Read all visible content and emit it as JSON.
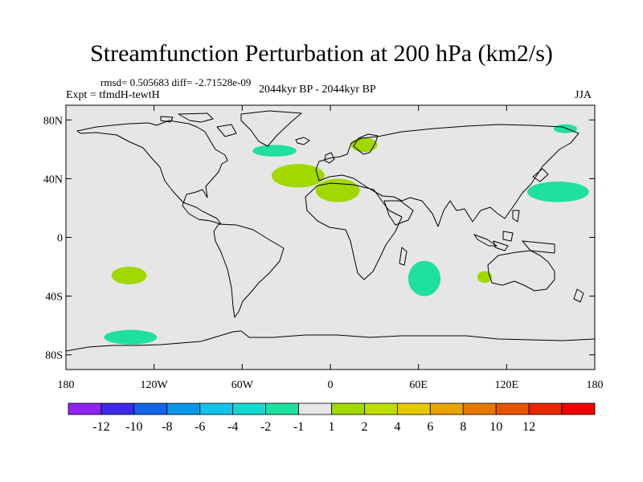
{
  "title": "Streamfunction Perturbation at 200 hPa (km2/s)",
  "stats": {
    "rmsd": "rmsd= 0.505683 diff= -2.71528e-09"
  },
  "experiment": "Expt = tfmdH-tewtH",
  "period": "2044kyr BP - 2044kyr BP",
  "season": "JJA",
  "map": {
    "lat_ticks": [
      {
        "label": "80N",
        "lat": 80
      },
      {
        "label": "40N",
        "lat": 40
      },
      {
        "label": "0",
        "lat": 0
      },
      {
        "label": "40S",
        "lat": -40
      },
      {
        "label": "80S",
        "lat": -80
      }
    ],
    "lon_ticks": [
      {
        "label": "180",
        "lon": -180
      },
      {
        "label": "120W",
        "lon": -120
      },
      {
        "label": "60W",
        "lon": -60
      },
      {
        "label": "0",
        "lon": 0
      },
      {
        "label": "60E",
        "lon": 60
      },
      {
        "label": "120E",
        "lon": 120
      },
      {
        "label": "180",
        "lon": 180
      }
    ],
    "anomalies": [
      {
        "name": "north-atlantic-green",
        "lon": -22,
        "lat": 42,
        "rlon": 18,
        "rlat": 8,
        "color": "#a0d800"
      },
      {
        "name": "north-africa-green",
        "lon": 5,
        "lat": 32,
        "rlon": 15,
        "rlat": 8,
        "color": "#a0d800"
      },
      {
        "name": "scandinavia-green",
        "lon": 23,
        "lat": 63,
        "rlon": 9,
        "rlat": 5,
        "color": "#a0d800"
      },
      {
        "name": "labrador-sea-teal",
        "lon": -38,
        "lat": 59,
        "rlon": 15,
        "rlat": 4,
        "color": "#1ee0a0"
      },
      {
        "name": "north-pacific-teal",
        "lon": 155,
        "lat": 31,
        "rlon": 21,
        "rlat": 7,
        "color": "#1ee0a0"
      },
      {
        "name": "arctic-teal",
        "lon": 160,
        "lat": 74,
        "rlon": 8,
        "rlat": 3,
        "color": "#1ee0a0"
      },
      {
        "name": "south-indian-teal",
        "lon": 64,
        "lat": -28,
        "rlon": 11,
        "rlat": 12,
        "color": "#1ee0a0"
      },
      {
        "name": "west-australia-green",
        "lon": 105,
        "lat": -27,
        "rlon": 5,
        "rlat": 4,
        "color": "#a0d800"
      },
      {
        "name": "south-pacific-green",
        "lon": -137,
        "lat": -26,
        "rlon": 12,
        "rlat": 6,
        "color": "#a0d800"
      },
      {
        "name": "southern-ocean-teal",
        "lon": -136,
        "lat": -68,
        "rlon": 18,
        "rlat": 5,
        "color": "#1ee0a0"
      }
    ]
  },
  "colorbar": {
    "colors": [
      "#8e24f0",
      "#3c28e6",
      "#1464e6",
      "#0a96e6",
      "#14c3e6",
      "#14d8d0",
      "#1ee0a0",
      "#e6e6e6",
      "#a0d800",
      "#bede00",
      "#e6c800",
      "#e6a400",
      "#e67a00",
      "#e65400",
      "#e62800",
      "#f00000"
    ],
    "labels": [
      "-12",
      "-10",
      "-8",
      "-6",
      "-4",
      "-2",
      "-1",
      "1",
      "2",
      "4",
      "6",
      "8",
      "10",
      "12"
    ]
  }
}
